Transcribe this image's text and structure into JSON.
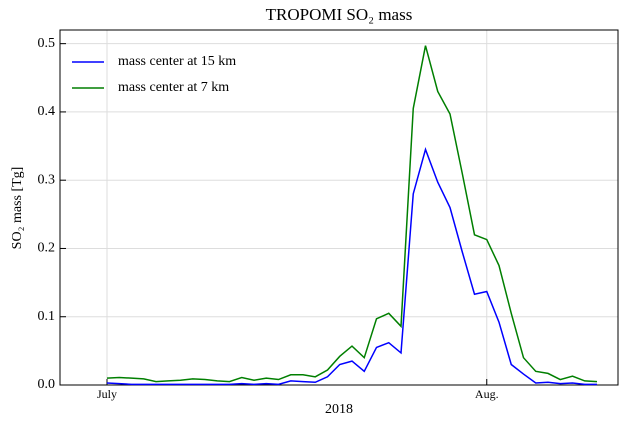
{
  "chart_data": {
    "type": "line",
    "title": "TROPOMI SO₂ mass",
    "x_label": "2018",
    "y_label": "SO₂ mass [Tg]",
    "categories": [
      "July",
      null,
      null,
      null,
      null,
      null,
      null,
      null,
      null,
      null,
      null,
      null,
      null,
      null,
      null,
      null,
      null,
      null,
      null,
      null,
      null,
      null,
      null,
      null,
      null,
      null,
      null,
      null,
      null,
      null,
      null,
      "Aug.",
      null,
      null,
      null,
      null,
      null,
      null,
      null,
      null,
      null
    ],
    "series": [
      {
        "name": "mass center at 15 km",
        "color": "#0000ff",
        "values": [
          0.003,
          0.002,
          0.001,
          0.001,
          0.001,
          0.001,
          0.001,
          0.001,
          0.001,
          0.001,
          0.001,
          0.002,
          0.001,
          0.002,
          0.001,
          0.006,
          0.005,
          0.004,
          0.012,
          0.03,
          0.035,
          0.02,
          0.055,
          0.062,
          0.047,
          0.28,
          0.345,
          0.297,
          0.26,
          0.195,
          0.133,
          0.137,
          0.092,
          0.03,
          0.016,
          0.003,
          0.004,
          0.002,
          0.003,
          0.001,
          0.001
        ]
      },
      {
        "name": "mass center at 7 km",
        "color": "#007f00",
        "values": [
          0.01,
          0.011,
          0.01,
          0.009,
          0.005,
          0.006,
          0.007,
          0.009,
          0.008,
          0.006,
          0.005,
          0.011,
          0.007,
          0.01,
          0.008,
          0.015,
          0.015,
          0.012,
          0.022,
          0.042,
          0.057,
          0.04,
          0.097,
          0.105,
          0.086,
          0.405,
          0.497,
          0.43,
          0.397,
          0.31,
          0.22,
          0.213,
          0.175,
          0.105,
          0.04,
          0.02,
          0.017,
          0.008,
          0.013,
          0.006,
          0.005
        ]
      }
    ],
    "ylim": [
      0,
      0.52
    ],
    "yticks": [
      {
        "value": 0,
        "label": "0.0"
      },
      0.1,
      0.2,
      0.3,
      0.4,
      0.5
    ],
    "grid": true,
    "legend": "upper-left"
  }
}
